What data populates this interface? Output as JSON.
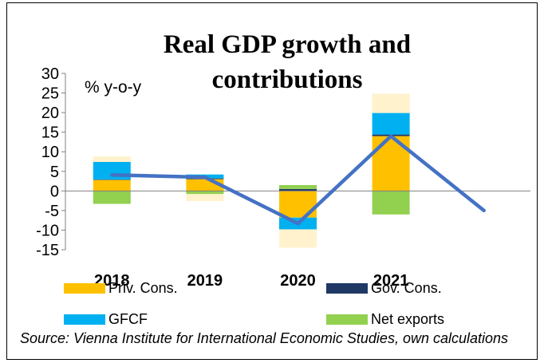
{
  "chart_data": {
    "type": "bar",
    "title": "Real GDP growth and contributions",
    "unit_label": "% y-o-y",
    "categories": [
      "2018",
      "2019",
      "2020",
      "2021",
      ""
    ],
    "y_ticks": [
      "30",
      "25",
      "20",
      "15",
      "10",
      "5",
      "0",
      "-5",
      "-10",
      "-15"
    ],
    "ylim": [
      -15,
      30
    ],
    "series": [
      {
        "name": "Priv. Cons.",
        "color": "#FFC000",
        "values": [
          2.8,
          3.0,
          -6.8,
          14.0,
          null
        ]
      },
      {
        "name": "Gov. Cons.",
        "color": "#1F3864",
        "values": [
          0.1,
          0.2,
          0.5,
          0.4,
          null
        ]
      },
      {
        "name": "GFCF",
        "color": "#00B0F0",
        "values": [
          4.5,
          1.0,
          -3.0,
          5.5,
          null
        ]
      },
      {
        "name": "Net exports",
        "color": "#92D050",
        "values": [
          -3.3,
          -0.8,
          1.0,
          -6.0,
          null
        ]
      },
      {
        "color": "#FFF2CC",
        "values": [
          [
            8.8,
            null
          ],
          [
            null,
            -2.6
          ],
          [
            null,
            -14.5
          ],
          [
            24.8,
            null
          ],
          null
        ]
      }
    ],
    "line": {
      "color": "#4472C4",
      "values": [
        4.1,
        3.5,
        -8.3,
        14.0,
        -5.0
      ]
    },
    "legend": [
      "Priv. Cons.",
      "Gov. Cons.",
      "GFCF",
      "Net exports"
    ],
    "source": "Source: Vienna Institute for International Economic Studies, own calculations",
    "grid": false
  }
}
